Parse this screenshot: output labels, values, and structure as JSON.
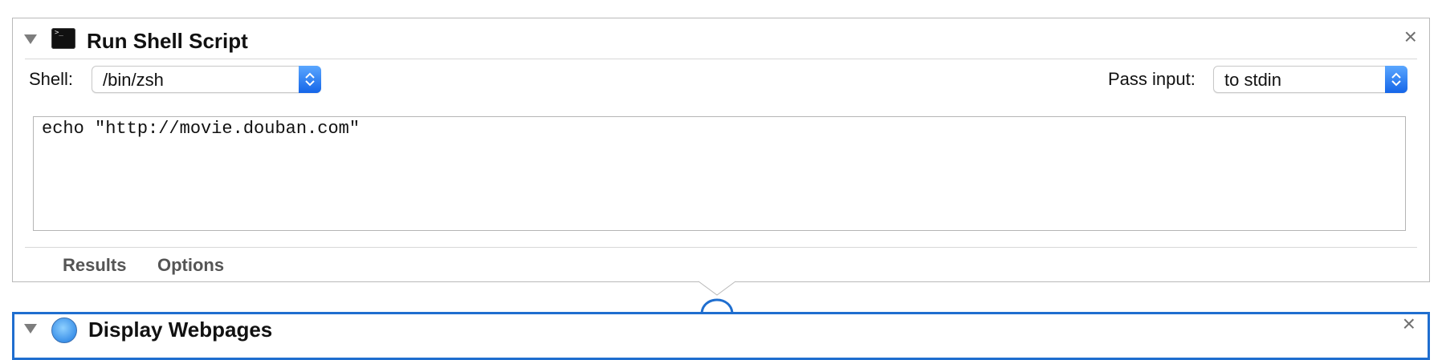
{
  "action1": {
    "title": "Run Shell Script",
    "icon": "terminal-icon",
    "icon_prompt": ">_",
    "close": "×",
    "shell": {
      "label": "Shell:",
      "value": "/bin/zsh"
    },
    "pass_input": {
      "label": "Pass input:",
      "value": "to stdin"
    },
    "script": "echo \"http://movie.douban.com\"",
    "tabs": [
      "Results",
      "Options"
    ]
  },
  "action2": {
    "title": "Display Webpages",
    "icon": "safari-icon",
    "close": "×"
  },
  "colors": {
    "accent": "#1f6ecf",
    "popup_arrow": "#2a7ef2",
    "card_border": "#b9b9b9",
    "tab_text": "#555555"
  }
}
